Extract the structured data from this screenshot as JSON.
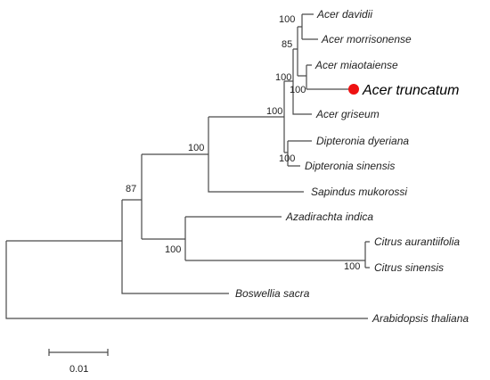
{
  "tree": {
    "taxa": {
      "acer_davidii": "Acer davidii",
      "acer_morrisonense": "Acer morrisonense",
      "acer_miaotaiense": "Acer miaotaiense",
      "acer_truncatum": "Acer truncatum",
      "acer_griseum": "Acer griseum",
      "dipteronia_dyeriana": "Dipteronia dyeriana",
      "dipteronia_sinensis": "Dipteronia sinensis",
      "sapindus_mukorossi": "Sapindus mukorossi",
      "azadirachta_indica": "Azadirachta indica",
      "citrus_aurantiifolia": "Citrus aurantiifolia",
      "citrus_sinensis": "Citrus sinensis",
      "boswellia_sacra": "Boswellia sacra",
      "arabidopsis_thaliana": "Arabidopsis thaliana"
    },
    "bootstrap": {
      "davidii_morrisonense": "100",
      "acer_core": "85",
      "acer_all": "100",
      "miaotaiense_truncatum": "100",
      "acer_dipteronia": "100",
      "dipteronia": "100",
      "sapindaceae": "100",
      "meliaceae_rutaceae": "100",
      "citrus": "100",
      "sapindales": "87"
    },
    "highlight": {
      "taxon": "Acer truncatum",
      "marker_color": "#ee1111"
    },
    "scale_bar": {
      "label": "0.01"
    }
  }
}
